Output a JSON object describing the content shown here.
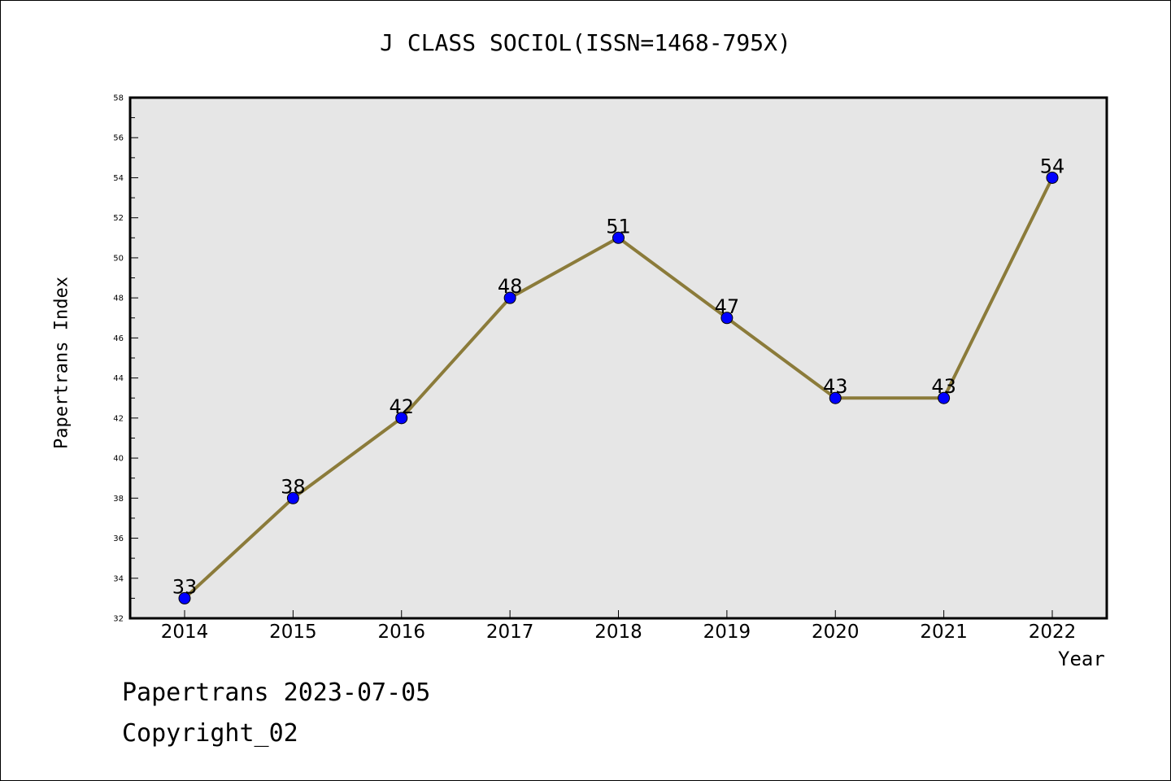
{
  "chart_data": {
    "type": "line",
    "title": "J CLASS SOCIOL(ISSN=1468-795X)",
    "xlabel": "Year",
    "ylabel": "Papertrans Index",
    "categories": [
      "2014",
      "2015",
      "2016",
      "2017",
      "2018",
      "2019",
      "2020",
      "2021",
      "2022"
    ],
    "series": [
      {
        "values": [
          33,
          38,
          42,
          48,
          51,
          47,
          43,
          43,
          54
        ]
      }
    ],
    "ylim": [
      32,
      58
    ],
    "yticks": [
      "32",
      "34",
      "36",
      "38",
      "40",
      "42",
      "44",
      "46",
      "48",
      "50",
      "52",
      "54",
      "56",
      "58"
    ],
    "grid": false,
    "plot_background": "#e6e6e6",
    "line_color": "#8b7b3a",
    "marker_color": "#0000ff"
  },
  "footer": {
    "line1": "Papertrans 2023-07-05",
    "line2": "Copyright_02"
  }
}
